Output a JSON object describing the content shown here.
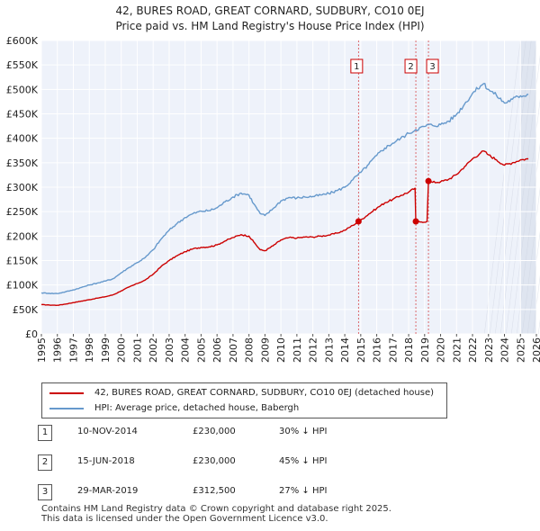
{
  "title": {
    "line1": "42, BURES ROAD, GREAT CORNARD, SUDBURY, CO10 0EJ",
    "line2": "Price paid vs. HM Land Registry's House Price Index (HPI)"
  },
  "colors": {
    "property": "#cc0000",
    "hpi": "#6699cc",
    "plot_bg": "#eef2fa",
    "marker_line": "#cc0000"
  },
  "chart_data": {
    "type": "line",
    "xlim": [
      1995,
      2026
    ],
    "ylim": [
      0,
      600000
    ],
    "x_ticks": [
      "1995",
      "1996",
      "1997",
      "1998",
      "1999",
      "2000",
      "2001",
      "2002",
      "2003",
      "2004",
      "2005",
      "2006",
      "2007",
      "2008",
      "2009",
      "2010",
      "2011",
      "2012",
      "2013",
      "2014",
      "2015",
      "2016",
      "2017",
      "2018",
      "2019",
      "2020",
      "2021",
      "2022",
      "2023",
      "2024",
      "2025",
      "2026"
    ],
    "y_ticks": [
      {
        "value": 0,
        "label": "£0"
      },
      {
        "value": 50000,
        "label": "£50K"
      },
      {
        "value": 100000,
        "label": "£100K"
      },
      {
        "value": 150000,
        "label": "£150K"
      },
      {
        "value": 200000,
        "label": "£200K"
      },
      {
        "value": 250000,
        "label": "£250K"
      },
      {
        "value": 300000,
        "label": "£300K"
      },
      {
        "value": 350000,
        "label": "£350K"
      },
      {
        "value": 400000,
        "label": "£400K"
      },
      {
        "value": 450000,
        "label": "£450K"
      },
      {
        "value": 500000,
        "label": "£500K"
      },
      {
        "value": 550000,
        "label": "£550K"
      },
      {
        "value": 600000,
        "label": "£600K"
      }
    ],
    "grid": true,
    "series": [
      {
        "name": "42, BURES ROAD, GREAT CORNARD, SUDBURY, CO10 0EJ (detached house)",
        "color": "#cc0000",
        "points": [
          [
            1995.0,
            60000
          ],
          [
            1995.5,
            59000
          ],
          [
            1996.0,
            58500
          ],
          [
            1996.5,
            61000
          ],
          [
            1997.0,
            64000
          ],
          [
            1997.5,
            67000
          ],
          [
            1998.0,
            70000
          ],
          [
            1998.5,
            73000
          ],
          [
            1999.0,
            76000
          ],
          [
            1999.5,
            80000
          ],
          [
            2000.0,
            88000
          ],
          [
            2000.5,
            96000
          ],
          [
            2001.0,
            103000
          ],
          [
            2001.5,
            110000
          ],
          [
            2002.0,
            122000
          ],
          [
            2002.5,
            138000
          ],
          [
            2003.0,
            150000
          ],
          [
            2003.5,
            160000
          ],
          [
            2004.0,
            168000
          ],
          [
            2004.5,
            174000
          ],
          [
            2005.0,
            177000
          ],
          [
            2005.5,
            178000
          ],
          [
            2006.0,
            182000
          ],
          [
            2006.5,
            190000
          ],
          [
            2007.0,
            197000
          ],
          [
            2007.5,
            203000
          ],
          [
            2008.0,
            200000
          ],
          [
            2008.3,
            188000
          ],
          [
            2008.7,
            172000
          ],
          [
            2009.0,
            170000
          ],
          [
            2009.5,
            180000
          ],
          [
            2010.0,
            192000
          ],
          [
            2010.5,
            197000
          ],
          [
            2011.0,
            196000
          ],
          [
            2011.5,
            198000
          ],
          [
            2012.0,
            198000
          ],
          [
            2012.5,
            200000
          ],
          [
            2013.0,
            202000
          ],
          [
            2013.5,
            206000
          ],
          [
            2014.0,
            212000
          ],
          [
            2014.5,
            222000
          ],
          [
            2014.86,
            230000
          ],
          [
            2015.0,
            233000
          ],
          [
            2015.5,
            245000
          ],
          [
            2016.0,
            257000
          ],
          [
            2016.5,
            268000
          ],
          [
            2017.0,
            275000
          ],
          [
            2017.5,
            283000
          ],
          [
            2018.0,
            290000
          ],
          [
            2018.4,
            298000
          ],
          [
            2018.45,
            230000
          ],
          [
            2018.8,
            229000
          ],
          [
            2019.15,
            230000
          ],
          [
            2019.24,
            312500
          ],
          [
            2019.5,
            310000
          ],
          [
            2020.0,
            311000
          ],
          [
            2020.5,
            316000
          ],
          [
            2021.0,
            326000
          ],
          [
            2021.5,
            342000
          ],
          [
            2022.0,
            358000
          ],
          [
            2022.5,
            370000
          ],
          [
            2022.7,
            374000
          ],
          [
            2023.0,
            366000
          ],
          [
            2023.5,
            356000
          ],
          [
            2024.0,
            345000
          ],
          [
            2024.5,
            350000
          ],
          [
            2025.0,
            356000
          ],
          [
            2025.5,
            358000
          ]
        ]
      },
      {
        "name": "HPI: Average price, detached house, Babergh",
        "color": "#6699cc",
        "points": [
          [
            1995.0,
            84000
          ],
          [
            1995.5,
            83000
          ],
          [
            1996.0,
            82500
          ],
          [
            1996.5,
            86000
          ],
          [
            1997.0,
            90000
          ],
          [
            1997.5,
            95000
          ],
          [
            1998.0,
            100000
          ],
          [
            1998.5,
            104000
          ],
          [
            1999.0,
            108000
          ],
          [
            1999.5,
            113000
          ],
          [
            2000.0,
            125000
          ],
          [
            2000.5,
            136000
          ],
          [
            2001.0,
            146000
          ],
          [
            2001.5,
            156000
          ],
          [
            2002.0,
            172000
          ],
          [
            2002.5,
            194000
          ],
          [
            2003.0,
            212000
          ],
          [
            2003.5,
            226000
          ],
          [
            2004.0,
            238000
          ],
          [
            2004.5,
            246000
          ],
          [
            2005.0,
            251000
          ],
          [
            2005.5,
            252000
          ],
          [
            2006.0,
            258000
          ],
          [
            2006.5,
            270000
          ],
          [
            2007.0,
            280000
          ],
          [
            2007.5,
            288000
          ],
          [
            2008.0,
            284000
          ],
          [
            2008.3,
            266000
          ],
          [
            2008.7,
            246000
          ],
          [
            2009.0,
            242000
          ],
          [
            2009.5,
            256000
          ],
          [
            2010.0,
            272000
          ],
          [
            2010.5,
            279000
          ],
          [
            2011.0,
            278000
          ],
          [
            2011.5,
            280000
          ],
          [
            2012.0,
            281000
          ],
          [
            2012.5,
            284000
          ],
          [
            2013.0,
            287000
          ],
          [
            2013.5,
            293000
          ],
          [
            2014.0,
            300000
          ],
          [
            2014.5,
            315000
          ],
          [
            2014.86,
            327000
          ],
          [
            2015.0,
            330000
          ],
          [
            2015.5,
            347000
          ],
          [
            2016.0,
            365000
          ],
          [
            2016.5,
            380000
          ],
          [
            2017.0,
            390000
          ],
          [
            2017.5,
            400000
          ],
          [
            2018.0,
            410000
          ],
          [
            2018.45,
            418000
          ],
          [
            2019.0,
            424000
          ],
          [
            2019.24,
            428000
          ],
          [
            2019.5,
            426000
          ],
          [
            2020.0,
            428000
          ],
          [
            2020.5,
            435000
          ],
          [
            2021.0,
            449000
          ],
          [
            2021.5,
            470000
          ],
          [
            2022.0,
            492000
          ],
          [
            2022.5,
            507000
          ],
          [
            2022.7,
            512000
          ],
          [
            2023.0,
            500000
          ],
          [
            2023.5,
            488000
          ],
          [
            2024.0,
            472000
          ],
          [
            2024.5,
            480000
          ],
          [
            2025.0,
            487000
          ],
          [
            2025.5,
            490000
          ]
        ]
      }
    ],
    "transactions": [
      {
        "label": "1",
        "x": 2014.86,
        "price": 230000,
        "date": "10-NOV-2014",
        "price_text": "£230,000",
        "hpi_text": "30% ↓ HPI"
      },
      {
        "label": "2",
        "x": 2018.45,
        "price": 230000,
        "date": "15-JUN-2018",
        "price_text": "£230,000",
        "hpi_text": "45% ↓ HPI"
      },
      {
        "label": "3",
        "x": 2019.24,
        "price": 312500,
        "date": "29-MAR-2019",
        "price_text": "£312,500",
        "hpi_text": "27% ↓ HPI"
      }
    ],
    "shaded_region": {
      "from": 2025.0,
      "to": 2026.0
    }
  },
  "legend": {
    "property_label": "42, BURES ROAD, GREAT CORNARD, SUDBURY, CO10 0EJ (detached house)",
    "hpi_label": "HPI: Average price, detached house, Babergh"
  },
  "footer": {
    "line1": "Contains HM Land Registry data © Crown copyright and database right 2025.",
    "line2": "This data is licensed under the Open Government Licence v3.0."
  }
}
